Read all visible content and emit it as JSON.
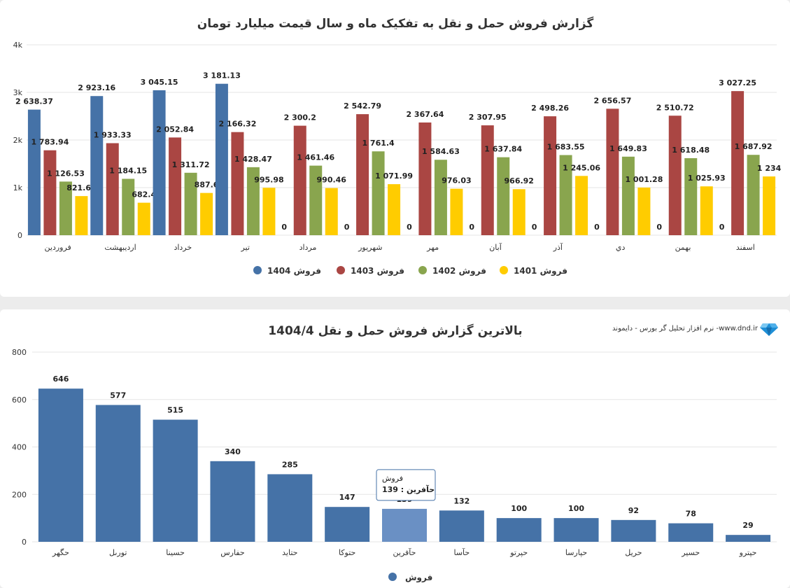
{
  "chart_data": [
    {
      "type": "bar",
      "title": "گزارش فروش حمل و نقل به تفکیک ماه و سال قیمت میلیارد تومان",
      "categories": [
        "فروردين",
        "ارديبهشت",
        "خرداد",
        "تير",
        "مرداد",
        "شهريور",
        "مهر",
        "آبان",
        "آذر",
        "دي",
        "بهمن",
        "اسفند"
      ],
      "ylim": [
        0,
        4000
      ],
      "yticks": [
        0,
        1000,
        2000,
        3000,
        4000
      ],
      "ytick_labels": [
        "0",
        "1k",
        "2k",
        "3k",
        "4k"
      ],
      "grid": true,
      "legend_position": "bottom",
      "series": [
        {
          "name": "فروش 1404",
          "color": "#4572a7",
          "values": [
            2638.37,
            2923.16,
            3045.15,
            3181.13,
            0,
            0,
            0,
            0,
            0,
            0,
            0,
            0
          ],
          "labels": [
            "2 638.37",
            "2 923.16",
            "3 045.15",
            "3 181.13",
            "0",
            "0",
            "0",
            "0",
            "0",
            "0",
            "0",
            "0"
          ]
        },
        {
          "name": "فروش 1403",
          "color": "#aa4643",
          "values": [
            1783.94,
            1933.33,
            2052.84,
            2166.32,
            2300.2,
            2542.79,
            2367.64,
            2307.95,
            2498.26,
            2656.57,
            2510.72,
            3027.25
          ],
          "labels": [
            "1 783.94",
            "1 933.33",
            "2 052.84",
            "2 166.32",
            "2 300.2",
            "2 542.79",
            "2 367.64",
            "2 307.95",
            "2 498.26",
            "2 656.57",
            "2 510.72",
            "3 027.25"
          ]
        },
        {
          "name": "فروش 1402",
          "color": "#89a54e",
          "values": [
            1126.53,
            1184.15,
            1311.72,
            1428.47,
            1461.46,
            1761.4,
            1584.63,
            1637.84,
            1683.55,
            1649.83,
            1618.48,
            1687.92
          ],
          "labels": [
            "1 126.53",
            "1 184.15",
            "1 311.72",
            "1 428.47",
            "1 461.46",
            "1 761.4",
            "1 584.63",
            "1 637.84",
            "1 683.55",
            "1 649.83",
            "1 618.48",
            "1 687.92"
          ]
        },
        {
          "name": "فروش 1401",
          "color": "#ffcc00",
          "values": [
            821.67,
            682.4,
            887.6,
            995.98,
            990.46,
            1071.99,
            976.03,
            966.92,
            1245.06,
            1001.28,
            1025.93,
            1234
          ],
          "labels": [
            "821.67",
            "682.4",
            "887.6",
            "995.98",
            "990.46",
            "1 071.99",
            "976.03",
            "966.92",
            "1 245.06",
            "1 001.28",
            "1 025.93",
            "1 234"
          ]
        }
      ]
    },
    {
      "type": "bar",
      "title": "بالاترین گزارش فروش حمل و نقل 1404/4",
      "credit": "نرم افزار تحلیل گر بورس - دایموند -www.dnd.ir",
      "categories": [
        "حگهر",
        "تورىل",
        "حسينا",
        "حفارس",
        "حتايد",
        "حتوكا",
        "حآفرين",
        "حآسا",
        "حپرتو",
        "حپارسا",
        "حريل",
        "حسير",
        "حپترو"
      ],
      "values": [
        646,
        577,
        515,
        340,
        285,
        147,
        139,
        132,
        100,
        100,
        92,
        78,
        29
      ],
      "ylim": [
        0,
        800
      ],
      "yticks": [
        0,
        200,
        400,
        600,
        800
      ],
      "grid": true,
      "legend_position": "bottom",
      "series_name": "فروش",
      "color": "#4572a7",
      "highlight_color": "#6a90c4",
      "tooltip": {
        "series": "فروش",
        "text": "حآفرين : 139",
        "category_index": 6
      }
    }
  ]
}
